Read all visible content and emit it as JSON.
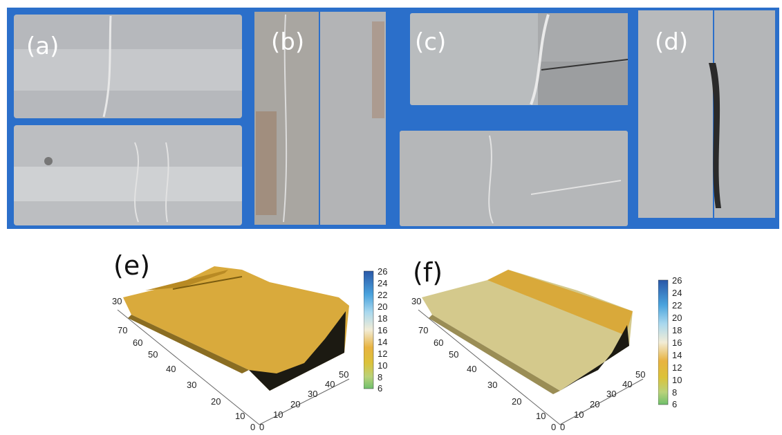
{
  "panels": {
    "a": "(a)",
    "b": "(b)",
    "c": "(c)",
    "d": "(d)",
    "e": "(e)",
    "f": "(f)"
  },
  "colorbar": {
    "ticks": [
      "26",
      "24",
      "22",
      "20",
      "18",
      "16",
      "14",
      "12",
      "10",
      "8",
      "6"
    ],
    "range": [
      6,
      26
    ],
    "colors": [
      "#2a58a8",
      "#4aa3dd",
      "#a9d8ee",
      "#f2ecd6",
      "#e8b340",
      "#dcc23a",
      "#b9d27a",
      "#6fbf6b"
    ]
  },
  "surface_e": {
    "left_axis_ticks": [
      "70",
      "60",
      "50",
      "40",
      "30",
      "20",
      "10",
      "0"
    ],
    "right_axis_ticks": [
      "0",
      "10",
      "20",
      "30",
      "40",
      "50"
    ],
    "z_tick": "30"
  },
  "surface_f": {
    "left_axis_ticks": [
      "70",
      "60",
      "50",
      "40",
      "30",
      "20",
      "10",
      "0"
    ],
    "right_axis_ticks": [
      "0",
      "10",
      "20",
      "30",
      "40",
      "50"
    ],
    "z_tick": "30"
  },
  "colors": {
    "background_blue": "#2a6fc9",
    "specimen_grey": "#b9bcc0",
    "surface_gold": "#d9a93a",
    "surface_dark": "#1c1a12"
  }
}
